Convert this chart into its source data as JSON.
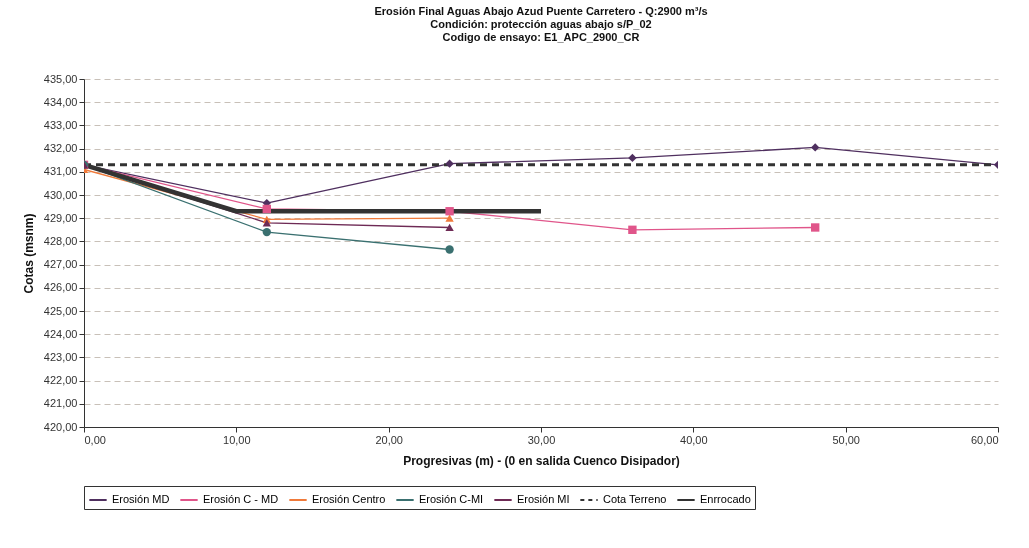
{
  "chart_data": {
    "type": "line",
    "title": "Erosión Final Aguas Abajo Azud Puente Carretero - Q:2900 m³/s",
    "subtitle": "Condición: protección aguas abajo s/P_02\nCodigo de ensayo: E1_APC_2900_CR",
    "xlabel": "Progresivas (m) - (0 en salida Cuenco Disipador)",
    "ylabel": "Cotas (msnm)",
    "xlim": [
      0,
      60
    ],
    "xticks": [
      {
        "value": 0,
        "label": "0,00"
      },
      {
        "value": 10,
        "label": "10,00"
      },
      {
        "value": 20,
        "label": "20,00"
      },
      {
        "value": 30,
        "label": "30,00"
      },
      {
        "value": 40,
        "label": "40,00"
      },
      {
        "value": 50,
        "label": "50,00"
      },
      {
        "value": 60,
        "label": "60,00"
      }
    ],
    "ylim": [
      420,
      435
    ],
    "yticks": [
      {
        "value": 420,
        "label": "420,00"
      },
      {
        "value": 421,
        "label": "421,00"
      },
      {
        "value": 422,
        "label": "422,00"
      },
      {
        "value": 423,
        "label": "423,00"
      },
      {
        "value": 424,
        "label": "424,00"
      },
      {
        "value": 425,
        "label": "425,00"
      },
      {
        "value": 426,
        "label": "426,00"
      },
      {
        "value": 427,
        "label": "427,00"
      },
      {
        "value": 428,
        "label": "428,00"
      },
      {
        "value": 429,
        "label": "429,00"
      },
      {
        "value": 430,
        "label": "430,00"
      },
      {
        "value": 431,
        "label": "431,00"
      },
      {
        "value": 432,
        "label": "432,00"
      },
      {
        "value": 433,
        "label": "433,00"
      },
      {
        "value": 434,
        "label": "434,00"
      },
      {
        "value": 435,
        "label": "435,00"
      }
    ],
    "grid": "y",
    "legend": "bottom",
    "series": [
      {
        "name": "Erosión MD",
        "color": "#4f2f5f",
        "marker": "diamond",
        "line_style": "solid",
        "x": [
          0,
          12,
          24,
          36,
          48,
          60
        ],
        "values": [
          431.3,
          429.65,
          431.35,
          431.6,
          432.05,
          431.3
        ]
      },
      {
        "name": "Erosión C - MD",
        "color": "#e0558a",
        "marker": "square",
        "line_style": "solid",
        "x": [
          0,
          12,
          24,
          36,
          48
        ],
        "values": [
          431.3,
          429.4,
          429.3,
          428.5,
          428.6
        ]
      },
      {
        "name": "Erosión Centro",
        "color": "#f07a3a",
        "marker": "triangle",
        "line_style": "solid",
        "x": [
          0,
          12,
          24
        ],
        "values": [
          431.1,
          428.95,
          429.0
        ]
      },
      {
        "name": "Erosión C-MI",
        "color": "#3a7070",
        "marker": "circle",
        "line_style": "solid",
        "x": [
          0,
          12,
          24
        ],
        "values": [
          431.3,
          428.4,
          427.65
        ]
      },
      {
        "name": "Erosión MI",
        "color": "#6e2a55",
        "marker": "triangle",
        "line_style": "solid",
        "x": [
          0,
          12,
          24
        ],
        "values": [
          431.3,
          428.8,
          428.6
        ]
      },
      {
        "name": "Cota Terreno",
        "color": "#333333",
        "marker": "none",
        "line_style": "dashed",
        "x": [
          0,
          60
        ],
        "values": [
          431.3,
          431.3
        ]
      },
      {
        "name": "Enrrocado",
        "color": "#333333",
        "marker": "none",
        "line_style": "solid",
        "x": [
          0,
          10,
          30
        ],
        "values": [
          431.3,
          429.3,
          429.3
        ]
      }
    ]
  }
}
